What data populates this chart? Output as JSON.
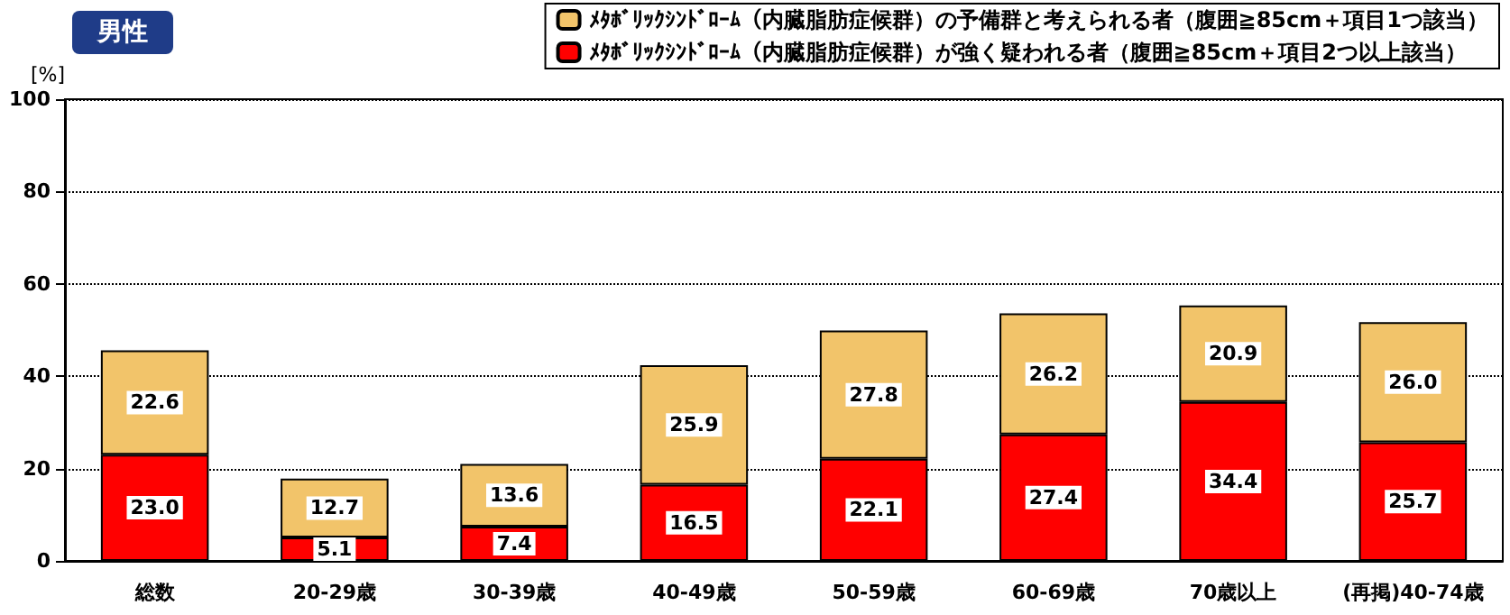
{
  "chart_data": {
    "type": "bar",
    "title": "男性",
    "ylabel": "[%]",
    "stacked": true,
    "grid": "y",
    "legend": "top right",
    "categories": [
      "総数",
      "20-29歳",
      "30-39歳",
      "40-49歳",
      "50-59歳",
      "60-69歳",
      "70歳以上",
      "(再掲)40-74歳"
    ],
    "ylim": [
      0,
      100
    ],
    "yticks": [
      0,
      20,
      40,
      60,
      80,
      100
    ],
    "series": [
      {
        "name": "ﾒﾀﾎﾞﾘｯｸｼﾝﾄﾞﾛｰﾑ（内臓脂肪症候群）が強く疑われる者（腹囲≧85cm＋項目2つ以上該当）",
        "color": "#ff0000",
        "values": [
          23.0,
          5.1,
          7.4,
          16.5,
          22.1,
          27.4,
          34.4,
          25.7
        ],
        "value_labels": [
          "23.0",
          "5.1",
          "7.4",
          "16.5",
          "22.1",
          "27.4",
          "34.4",
          "25.7"
        ]
      },
      {
        "name": "ﾒﾀﾎﾞﾘｯｸｼﾝﾄﾞﾛｰﾑ（内臓脂肪症候群）の予備群と考えられる者（腹囲≧85cm＋項目1つ該当）",
        "color": "#f2c46a",
        "values": [
          22.6,
          12.7,
          13.6,
          25.9,
          27.8,
          26.2,
          20.9,
          26.0
        ],
        "value_labels": [
          "22.6",
          "12.7",
          "13.6",
          "25.9",
          "27.8",
          "26.2",
          "20.9",
          "26.0"
        ]
      }
    ]
  }
}
